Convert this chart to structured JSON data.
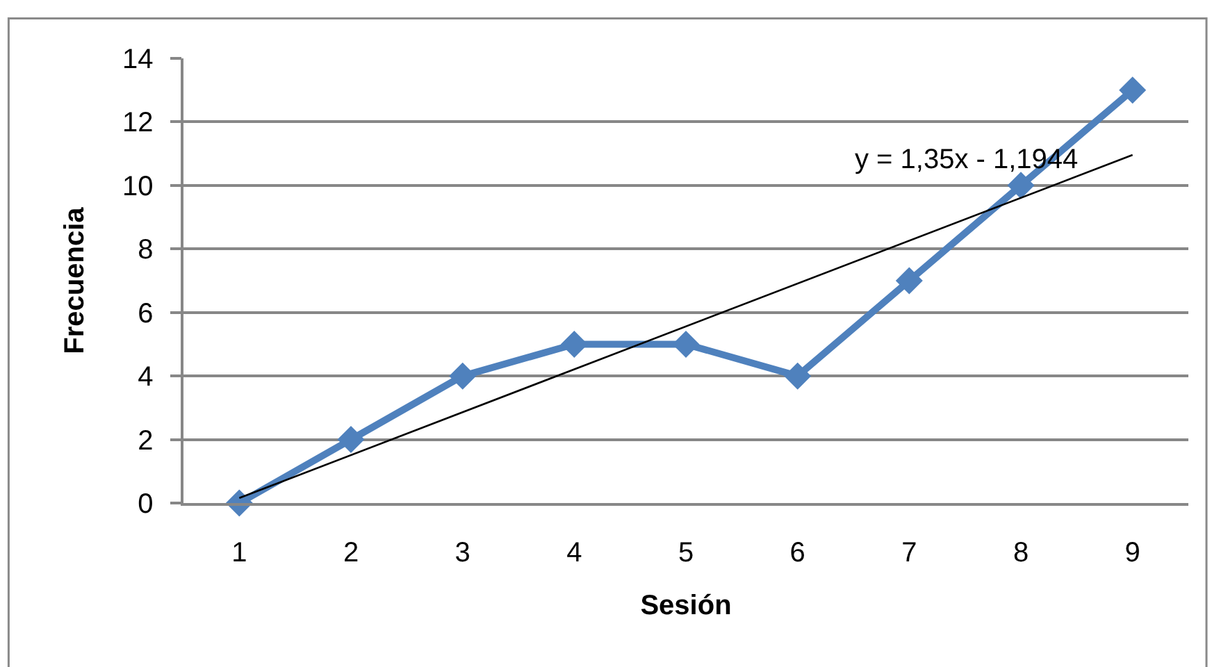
{
  "chart_data": {
    "type": "line",
    "xlabel": "Sesión",
    "ylabel": "Frecuencia",
    "x": [
      1,
      2,
      3,
      4,
      5,
      6,
      7,
      8,
      9
    ],
    "xlim": [
      0.5,
      9.5
    ],
    "xticks": [
      1,
      2,
      3,
      4,
      5,
      6,
      7,
      8,
      9
    ],
    "ylim": [
      0,
      14
    ],
    "yticks": [
      0,
      2,
      4,
      6,
      8,
      10,
      12,
      14
    ],
    "grid": "y",
    "marker": "diamond",
    "series": [
      {
        "color": "#4f81bd",
        "values": [
          0,
          2,
          4,
          5,
          5,
          4,
          7,
          10,
          13
        ]
      },
      {
        "type": "line",
        "x": [
          1,
          9
        ],
        "values": [
          0.16,
          10.96
        ],
        "color": "#000000",
        "marker": "none"
      }
    ],
    "annotations": [
      "y = 1,35x - 1,1944"
    ]
  }
}
